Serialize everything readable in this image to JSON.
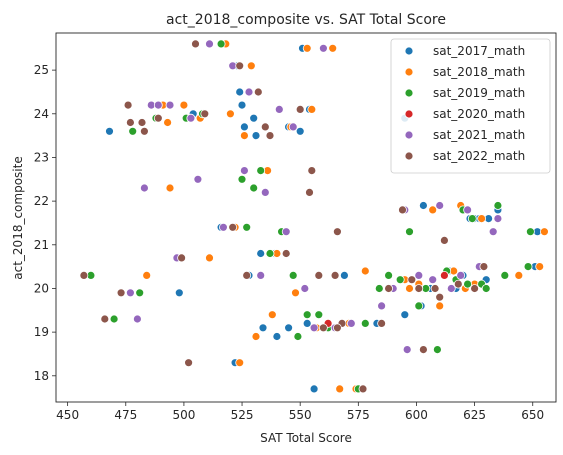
{
  "chart_data": {
    "type": "scatter",
    "title": "act_2018_composite vs. SAT Total Score",
    "xlabel": "SAT Total Score",
    "ylabel": "act_2018_composite",
    "xlim": [
      445,
      660
    ],
    "ylim": [
      17.4,
      25.85
    ],
    "xticks": [
      450,
      475,
      500,
      525,
      550,
      575,
      600,
      625,
      650
    ],
    "yticks": [
      18,
      19,
      20,
      21,
      22,
      23,
      24,
      25
    ],
    "grid": false,
    "legend_position": "top-right",
    "series": [
      {
        "name": "sat_2017_math",
        "color": "#1f77b4",
        "points": [
          [
            468,
            23.6
          ],
          [
            498,
            19.9
          ],
          [
            504,
            24.0
          ],
          [
            516,
            21.4
          ],
          [
            522,
            18.3
          ],
          [
            523,
            25.1
          ],
          [
            524,
            24.5
          ],
          [
            525,
            24.2
          ],
          [
            526,
            23.7
          ],
          [
            528,
            20.3
          ],
          [
            530,
            23.9
          ],
          [
            531,
            23.5
          ],
          [
            533,
            20.8
          ],
          [
            534,
            19.1
          ],
          [
            539,
            20.8
          ],
          [
            540,
            18.9
          ],
          [
            545,
            23.7
          ],
          [
            545,
            19.1
          ],
          [
            550,
            23.6
          ],
          [
            551,
            25.5
          ],
          [
            553,
            19.2
          ],
          [
            554,
            24.1
          ],
          [
            556,
            17.7
          ],
          [
            569,
            20.3
          ],
          [
            583,
            19.2
          ],
          [
            595,
            23.9
          ],
          [
            595,
            19.4
          ],
          [
            602,
            19.6
          ],
          [
            603,
            21.9
          ],
          [
            606,
            20.0
          ],
          [
            614,
            20.4
          ],
          [
            617,
            20.0
          ],
          [
            620,
            20.3
          ],
          [
            623,
            21.6
          ],
          [
            625,
            21.6
          ],
          [
            627,
            21.6
          ],
          [
            630,
            20.2
          ],
          [
            631,
            21.6
          ],
          [
            635,
            21.8
          ],
          [
            649,
            21.3
          ],
          [
            651,
            20.5
          ],
          [
            652,
            21.3
          ]
        ]
      },
      {
        "name": "sat_2018_math",
        "color": "#ff7f0e",
        "points": [
          [
            484,
            20.3
          ],
          [
            491,
            24.2
          ],
          [
            493,
            23.8
          ],
          [
            494,
            22.3
          ],
          [
            500,
            24.2
          ],
          [
            507,
            23.9
          ],
          [
            511,
            20.7
          ],
          [
            518,
            25.6
          ],
          [
            520,
            24.0
          ],
          [
            522,
            21.4
          ],
          [
            524,
            18.3
          ],
          [
            526,
            23.5
          ],
          [
            529,
            25.1
          ],
          [
            531,
            18.9
          ],
          [
            536,
            22.7
          ],
          [
            538,
            19.4
          ],
          [
            540,
            20.8
          ],
          [
            546,
            23.7
          ],
          [
            548,
            19.9
          ],
          [
            552,
            20.0
          ],
          [
            553,
            25.5
          ],
          [
            555,
            24.1
          ],
          [
            557,
            19.1
          ],
          [
            564,
            25.5
          ],
          [
            567,
            17.7
          ],
          [
            571,
            19.2
          ],
          [
            574,
            17.7
          ],
          [
            578,
            20.4
          ],
          [
            589,
            20.0
          ],
          [
            595,
            20.2
          ],
          [
            597,
            20.0
          ],
          [
            601,
            20.1
          ],
          [
            603,
            18.6
          ],
          [
            607,
            21.8
          ],
          [
            610,
            19.6
          ],
          [
            616,
            20.4
          ],
          [
            619,
            21.9
          ],
          [
            621,
            20.0
          ],
          [
            625,
            20.1
          ],
          [
            628,
            21.6
          ],
          [
            644,
            20.3
          ],
          [
            653,
            20.5
          ],
          [
            655,
            21.3
          ]
        ]
      },
      {
        "name": "sat_2019_math",
        "color": "#2ca02c",
        "points": [
          [
            460,
            20.3
          ],
          [
            470,
            19.3
          ],
          [
            478,
            23.6
          ],
          [
            481,
            19.9
          ],
          [
            488,
            23.9
          ],
          [
            501,
            23.9
          ],
          [
            503,
            23.9
          ],
          [
            508,
            24.0
          ],
          [
            516,
            25.6
          ],
          [
            525,
            22.5
          ],
          [
            527,
            21.4
          ],
          [
            530,
            22.3
          ],
          [
            533,
            22.7
          ],
          [
            537,
            20.8
          ],
          [
            542,
            21.3
          ],
          [
            547,
            20.3
          ],
          [
            549,
            18.9
          ],
          [
            553,
            19.4
          ],
          [
            558,
            19.4
          ],
          [
            562,
            19.1
          ],
          [
            575,
            17.7
          ],
          [
            578,
            19.2
          ],
          [
            584,
            20.0
          ],
          [
            588,
            20.3
          ],
          [
            593,
            20.2
          ],
          [
            597,
            21.3
          ],
          [
            601,
            19.6
          ],
          [
            604,
            20.0
          ],
          [
            609,
            18.6
          ],
          [
            613,
            20.4
          ],
          [
            617,
            20.2
          ],
          [
            620,
            21.8
          ],
          [
            622,
            20.1
          ],
          [
            624,
            21.6
          ],
          [
            628,
            20.1
          ],
          [
            630,
            20.0
          ],
          [
            635,
            21.9
          ],
          [
            638,
            20.3
          ],
          [
            648,
            20.5
          ],
          [
            649,
            21.3
          ]
        ]
      },
      {
        "name": "sat_2020_math",
        "color": "#d62728",
        "points": [
          [
            562,
            19.2
          ],
          [
            612,
            20.3
          ]
        ]
      },
      {
        "name": "sat_2021_math",
        "color": "#9467bd",
        "points": [
          [
            477,
            19.9
          ],
          [
            480,
            19.3
          ],
          [
            483,
            22.3
          ],
          [
            486,
            24.2
          ],
          [
            489,
            24.2
          ],
          [
            494,
            24.2
          ],
          [
            497,
            20.7
          ],
          [
            503,
            23.9
          ],
          [
            506,
            22.5
          ],
          [
            511,
            25.6
          ],
          [
            517,
            21.4
          ],
          [
            521,
            25.1
          ],
          [
            526,
            22.7
          ],
          [
            528,
            24.5
          ],
          [
            533,
            20.3
          ],
          [
            535,
            22.2
          ],
          [
            541,
            24.1
          ],
          [
            544,
            21.3
          ],
          [
            547,
            23.7
          ],
          [
            552,
            20.0
          ],
          [
            556,
            19.1
          ],
          [
            560,
            25.5
          ],
          [
            565,
            19.1
          ],
          [
            572,
            19.2
          ],
          [
            585,
            19.6
          ],
          [
            590,
            20.0
          ],
          [
            595,
            21.8
          ],
          [
            596,
            18.6
          ],
          [
            601,
            20.3
          ],
          [
            607,
            20.2
          ],
          [
            610,
            21.9
          ],
          [
            615,
            20.0
          ],
          [
            619,
            20.3
          ],
          [
            622,
            21.8
          ],
          [
            627,
            20.5
          ],
          [
            633,
            21.3
          ],
          [
            635,
            21.6
          ]
        ]
      },
      {
        "name": "sat_2022_math",
        "color": "#8c564b",
        "points": [
          [
            457,
            20.3
          ],
          [
            466,
            19.3
          ],
          [
            473,
            19.9
          ],
          [
            476,
            24.2
          ],
          [
            477,
            23.8
          ],
          [
            482,
            23.8
          ],
          [
            483,
            23.6
          ],
          [
            489,
            23.9
          ],
          [
            499,
            20.7
          ],
          [
            502,
            18.3
          ],
          [
            505,
            25.6
          ],
          [
            509,
            24.0
          ],
          [
            521,
            21.4
          ],
          [
            524,
            25.1
          ],
          [
            527,
            20.3
          ],
          [
            532,
            24.5
          ],
          [
            535,
            23.7
          ],
          [
            537,
            23.5
          ],
          [
            544,
            20.8
          ],
          [
            550,
            24.1
          ],
          [
            554,
            22.2
          ],
          [
            555,
            22.7
          ],
          [
            558,
            20.3
          ],
          [
            560,
            19.1
          ],
          [
            565,
            20.3
          ],
          [
            566,
            21.3
          ],
          [
            568,
            19.2
          ],
          [
            577,
            17.7
          ],
          [
            585,
            19.2
          ],
          [
            588,
            20.0
          ],
          [
            594,
            21.8
          ],
          [
            598,
            20.2
          ],
          [
            601,
            20.0
          ],
          [
            603,
            18.6
          ],
          [
            608,
            20.0
          ],
          [
            610,
            19.8
          ],
          [
            612,
            21.1
          ],
          [
            618,
            20.1
          ],
          [
            625,
            20.0
          ],
          [
            629,
            20.5
          ],
          [
            566,
            19.1
          ]
        ]
      }
    ]
  }
}
